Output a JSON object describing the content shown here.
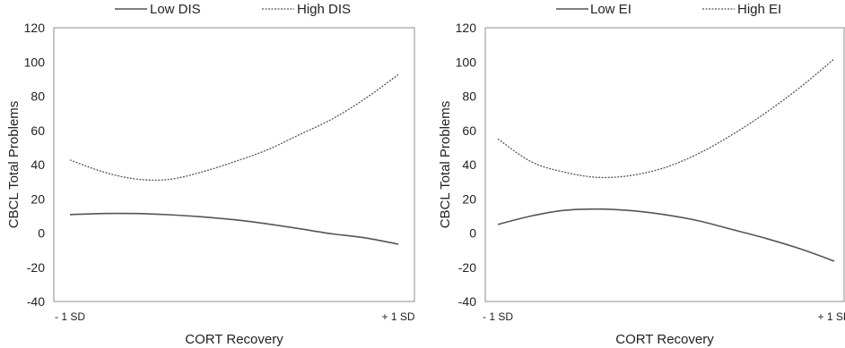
{
  "chart_data": [
    {
      "type": "line",
      "title": "",
      "xlabel": "CORT Recovery",
      "ylabel": "CBCL Total Problems",
      "ylim": [
        -40,
        120
      ],
      "yticks": [
        -40,
        -20,
        0,
        20,
        40,
        60,
        80,
        100,
        120
      ],
      "x_tick_labels": [
        "- 1 SD",
        "+ 1 SD"
      ],
      "x": [
        0,
        0.1,
        0.2,
        0.3,
        0.4,
        0.5,
        0.6,
        0.7,
        0.8,
        0.9,
        1.0
      ],
      "grid": false,
      "legend_position": "top",
      "series": [
        {
          "name": "Low DIS",
          "line_style": "solid",
          "color": "#555555",
          "values": [
            10.8,
            11.4,
            11.4,
            10.7,
            9.5,
            7.8,
            5.4,
            2.5,
            -0.5,
            -2.8,
            -6.5
          ]
        },
        {
          "name": "High DIS",
          "line_style": "dotted",
          "color": "#555555",
          "values": [
            42.7,
            35.8,
            31.6,
            31.3,
            35.6,
            41.6,
            48.5,
            57.6,
            66.8,
            78.7,
            92.6
          ]
        }
      ]
    },
    {
      "type": "line",
      "title": "",
      "xlabel": "CORT Recovery",
      "ylabel": "CBCL Total Problems",
      "ylim": [
        -40,
        120
      ],
      "yticks": [
        -40,
        -20,
        0,
        20,
        40,
        60,
        80,
        100,
        120
      ],
      "x_tick_labels": [
        "- 1 SD",
        "+ 1 SD"
      ],
      "x": [
        0,
        0.1,
        0.2,
        0.3,
        0.4,
        0.5,
        0.6,
        0.7,
        0.8,
        0.9,
        1.0
      ],
      "grid": false,
      "legend_position": "top",
      "series": [
        {
          "name": "Low EI",
          "line_style": "solid",
          "color": "#555555",
          "values": [
            5.0,
            10.0,
            13.3,
            14.0,
            13.0,
            10.6,
            7.0,
            1.9,
            -3.3,
            -9.3,
            -16.4
          ]
        },
        {
          "name": "High EI",
          "line_style": "dotted",
          "color": "#555555",
          "values": [
            55.0,
            41.6,
            35.5,
            32.5,
            33.8,
            38.5,
            46.8,
            57.9,
            70.8,
            85.4,
            101.8
          ]
        }
      ]
    }
  ]
}
